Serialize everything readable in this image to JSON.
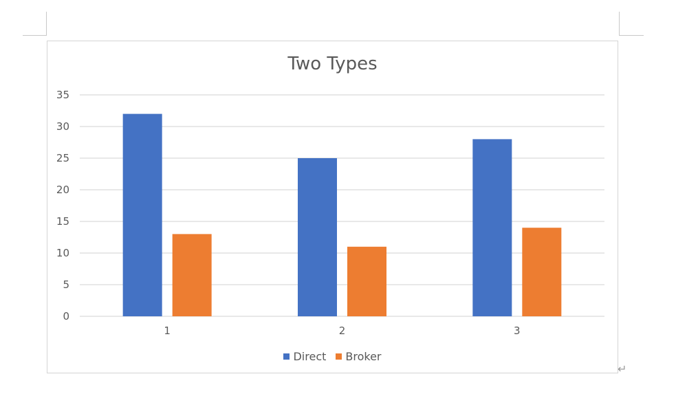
{
  "chart_data": {
    "type": "bar",
    "title": "Two Types",
    "categories": [
      "1",
      "2",
      "3"
    ],
    "series": [
      {
        "name": "Direct",
        "values": [
          32,
          25,
          28
        ],
        "color": "#4472c4"
      },
      {
        "name": "Broker",
        "values": [
          13,
          11,
          14
        ],
        "color": "#ed7d31"
      }
    ],
    "ylim": [
      0,
      35
    ],
    "yticks": [
      0,
      5,
      10,
      15,
      20,
      25,
      30,
      35
    ],
    "grid": true,
    "legend_position": "bottom",
    "xlabel": "",
    "ylabel": ""
  },
  "document": {
    "paragraph_mark": "↵"
  },
  "colors": {
    "gridline": "#d9d9d9",
    "axis_text": "#595959"
  }
}
